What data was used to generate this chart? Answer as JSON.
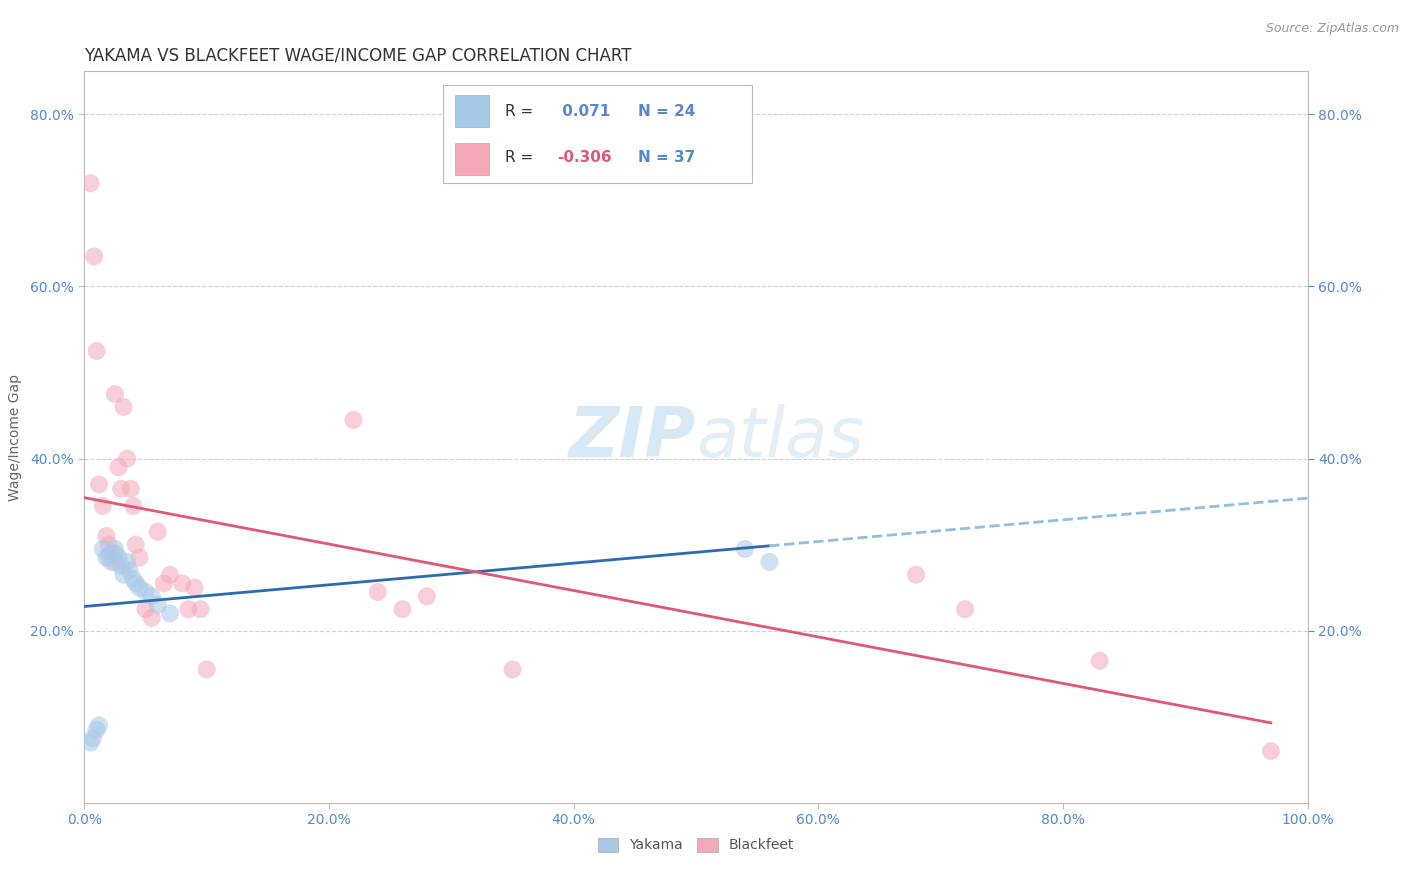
{
  "title": "YAKAMA VS BLACKFEET WAGE/INCOME GAP CORRELATION CHART",
  "source": "Source: ZipAtlas.com",
  "ylabel": "Wage/Income Gap",
  "xlim": [
    0.0,
    1.0
  ],
  "ylim": [
    0.0,
    0.85
  ],
  "yticks": [
    0.2,
    0.4,
    0.6,
    0.8
  ],
  "xticks": [
    0.0,
    0.2,
    0.4,
    0.6,
    0.8,
    1.0
  ],
  "yakama_color": "#A8C8E8",
  "blackfeet_color": "#F4A8B8",
  "yakama_line_color": "#2B6CB0",
  "blackfeet_line_color": "#E05878",
  "dashed_line_color": "#90C0E0",
  "tick_color": "#5588CC",
  "background_color": "#ffffff",
  "grid_color": "#cccccc",
  "R_yakama": "0.071",
  "N_yakama": "24",
  "R_blackfeet": "-0.306",
  "N_blackfeet": "37",
  "yakama_x": [
    0.005,
    0.007,
    0.01,
    0.012,
    0.015,
    0.018,
    0.02,
    0.022,
    0.025,
    0.025,
    0.028,
    0.03,
    0.032,
    0.035,
    0.037,
    0.04,
    0.042,
    0.045,
    0.05,
    0.055,
    0.06,
    0.07,
    0.54,
    0.56
  ],
  "yakama_y": [
    0.07,
    0.075,
    0.085,
    0.09,
    0.295,
    0.285,
    0.285,
    0.28,
    0.29,
    0.295,
    0.285,
    0.275,
    0.265,
    0.28,
    0.27,
    0.26,
    0.255,
    0.25,
    0.245,
    0.24,
    0.23,
    0.22,
    0.295,
    0.28
  ],
  "blackfeet_x": [
    0.005,
    0.008,
    0.01,
    0.012,
    0.015,
    0.018,
    0.02,
    0.022,
    0.025,
    0.025,
    0.028,
    0.03,
    0.032,
    0.035,
    0.038,
    0.04,
    0.042,
    0.045,
    0.05,
    0.055,
    0.06,
    0.065,
    0.07,
    0.08,
    0.085,
    0.09,
    0.095,
    0.1,
    0.22,
    0.24,
    0.26,
    0.28,
    0.35,
    0.68,
    0.72,
    0.83,
    0.97
  ],
  "blackfeet_y": [
    0.72,
    0.635,
    0.525,
    0.37,
    0.345,
    0.31,
    0.3,
    0.29,
    0.28,
    0.475,
    0.39,
    0.365,
    0.46,
    0.4,
    0.365,
    0.345,
    0.3,
    0.285,
    0.225,
    0.215,
    0.315,
    0.255,
    0.265,
    0.255,
    0.225,
    0.25,
    0.225,
    0.155,
    0.445,
    0.245,
    0.225,
    0.24,
    0.155,
    0.265,
    0.225,
    0.165,
    0.06
  ],
  "title_fontsize": 12,
  "axis_label_fontsize": 10,
  "tick_fontsize": 10,
  "marker_size": 13,
  "marker_alpha": 0.55,
  "legend_fontsize": 11
}
